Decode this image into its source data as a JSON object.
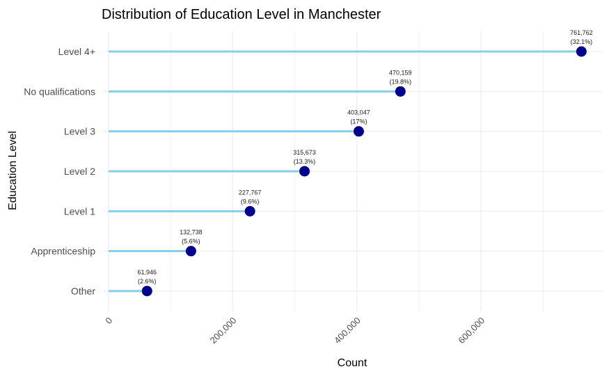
{
  "chart_data": {
    "type": "lollipop",
    "title": "Distribution of Education Level in Manchester",
    "xlabel": "Count",
    "ylabel": "Education Level",
    "xlim": [
      -9000,
      795000
    ],
    "x_ticks": [
      0,
      200000,
      400000,
      600000
    ],
    "x_tick_labels": [
      "0",
      "200,000",
      "400,000",
      "600,000"
    ],
    "x_tick_rotation_deg": -45,
    "grid": true,
    "categories": [
      "Level 4+",
      "No qualifications",
      "Level 3",
      "Level 2",
      "Level 1",
      "Apprenticeship",
      "Other"
    ],
    "values": [
      761762,
      470159,
      403047,
      315673,
      227767,
      132738,
      61946
    ],
    "value_labels": [
      "761,762",
      "470,159",
      "403,047",
      "315,673",
      "227,767",
      "132,738",
      "61,946"
    ],
    "percent_labels": [
      "(32.1%)",
      "(19.8%)",
      "(17%)",
      "(13.3%)",
      "(9.6%)",
      "(5.6%)",
      "(2.6%)"
    ],
    "colors": {
      "stem": "#87CEEB",
      "point": "#00008B",
      "grid": "#ebebeb"
    }
  }
}
